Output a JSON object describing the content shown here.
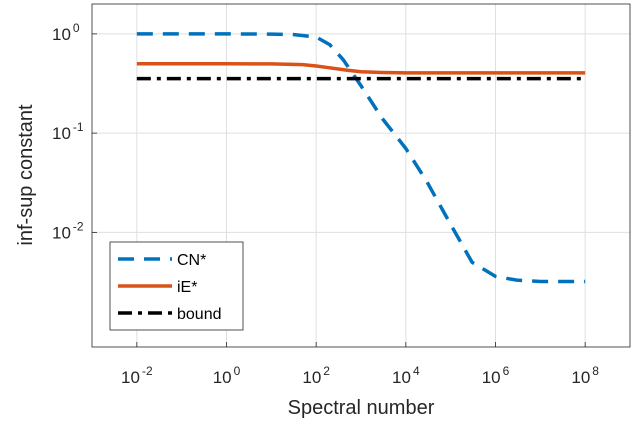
{
  "chart_data": {
    "type": "line",
    "xlabel": "Spectral number",
    "ylabel": "inf-sup constant",
    "x_scale": "log",
    "y_scale": "log",
    "xlim": [
      0.001,
      1000000000
    ],
    "ylim": [
      0.0007,
      2
    ],
    "x_ticks": [
      {
        "base": "10",
        "exp": "-2",
        "value": 0.01
      },
      {
        "base": "10",
        "exp": "0",
        "value": 1
      },
      {
        "base": "10",
        "exp": "2",
        "value": 100
      },
      {
        "base": "10",
        "exp": "4",
        "value": 10000
      },
      {
        "base": "10",
        "exp": "6",
        "value": 1000000
      },
      {
        "base": "10",
        "exp": "8",
        "value": 100000000
      }
    ],
    "y_ticks": [
      {
        "base": "10",
        "exp": "0",
        "value": 1
      },
      {
        "base": "10",
        "exp": "-1",
        "value": 0.1
      },
      {
        "base": "10",
        "exp": "-2",
        "value": 0.01
      }
    ],
    "grid": true,
    "legend_position": "bottom-left",
    "series": [
      {
        "name": "CN*",
        "color": "#0072BD",
        "style": "dashed",
        "x": [
          0.01,
          1,
          10,
          30,
          100,
          200,
          400,
          1000,
          3000,
          10000,
          30000,
          100000,
          300000,
          1000000,
          3000000,
          10000000,
          100000000
        ],
        "y": [
          1.0,
          1.0,
          0.995,
          0.985,
          0.93,
          0.78,
          0.55,
          0.3,
          0.14,
          0.07,
          0.032,
          0.012,
          0.005,
          0.0036,
          0.0033,
          0.0032,
          0.0032
        ]
      },
      {
        "name": "iE*",
        "color": "#D95319",
        "style": "solid",
        "x": [
          0.01,
          1,
          10,
          50,
          100,
          200,
          500,
          1000,
          3000,
          10000,
          100000,
          1000000,
          100000000
        ],
        "y": [
          0.5,
          0.5,
          0.498,
          0.49,
          0.475,
          0.455,
          0.43,
          0.415,
          0.408,
          0.405,
          0.405,
          0.405,
          0.405
        ]
      },
      {
        "name": "bound",
        "color": "#000000",
        "style": "dashdot",
        "x": [
          0.01,
          100000000
        ],
        "y": [
          0.354,
          0.354
        ]
      }
    ]
  }
}
